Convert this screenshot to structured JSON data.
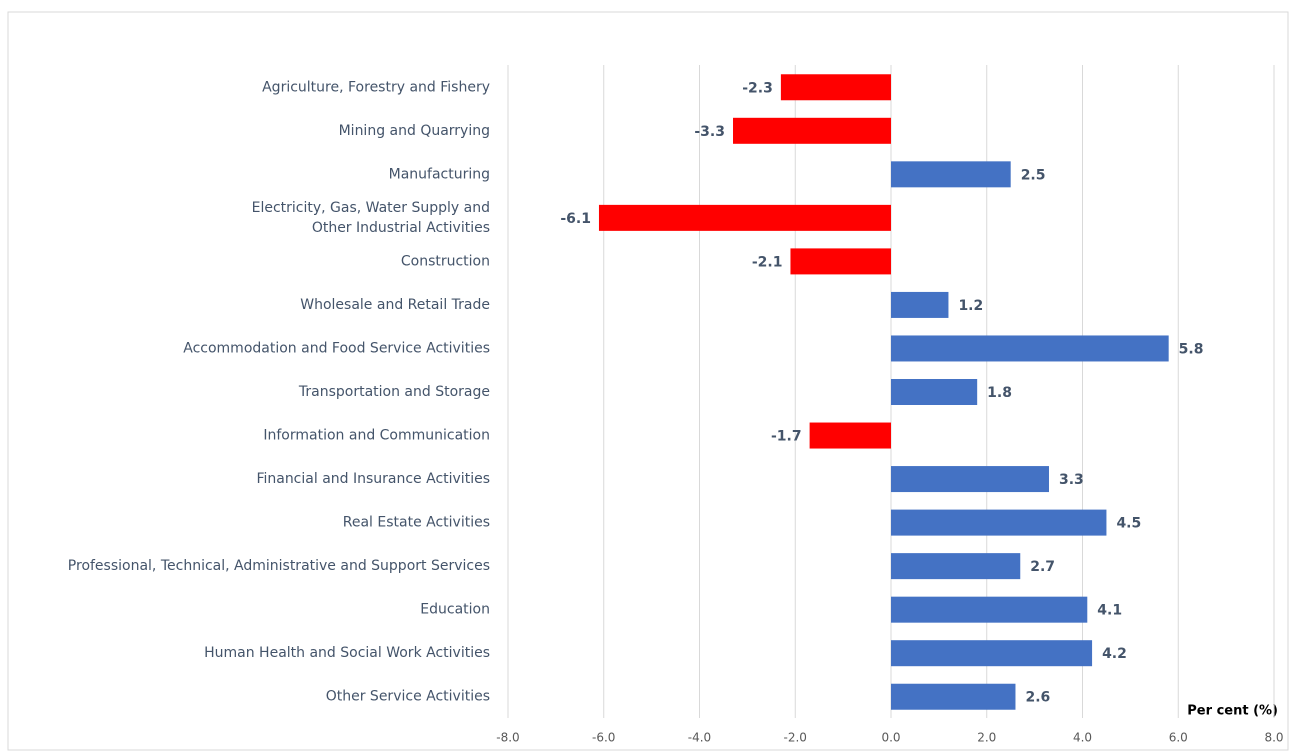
{
  "chart_data": {
    "type": "bar",
    "orientation": "horizontal",
    "categories": [
      "Agriculture, Forestry and Fishery",
      "Mining and Quarrying",
      "Manufacturing",
      "Electricity, Gas, Water Supply and\nOther Industrial Activities",
      "Construction",
      "Wholesale and Retail Trade",
      "Accommodation and Food Service Activities",
      "Transportation and Storage",
      "Information and Communication",
      "Financial and Insurance Activities",
      "Real Estate Activities",
      "Professional, Technical, Administrative and Support Services",
      "Education",
      "Human Health and Social Work Activities",
      "Other Service Activities"
    ],
    "values": [
      -2.3,
      -3.3,
      2.5,
      -6.1,
      -2.1,
      1.2,
      5.8,
      1.8,
      -1.7,
      3.3,
      4.5,
      2.7,
      4.1,
      4.2,
      2.6
    ],
    "color": "#4472c4",
    "negative_color": "#ff0000",
    "xlabel": "Per cent (%)",
    "xlim": [
      -8,
      8
    ],
    "xticks": [
      {
        "value": -8,
        "label": "-8.0"
      },
      {
        "value": -6,
        "label": "-6.0"
      },
      {
        "value": -4,
        "label": "-4.0"
      },
      {
        "value": -2,
        "label": "-2.0"
      },
      {
        "value": 0,
        "label": "0.0"
      },
      {
        "value": 2,
        "label": "2.0"
      },
      {
        "value": 4,
        "label": "4.0"
      },
      {
        "value": 6,
        "label": "6.0"
      },
      {
        "value": 8,
        "label": "8.0"
      }
    ],
    "grid": true
  }
}
